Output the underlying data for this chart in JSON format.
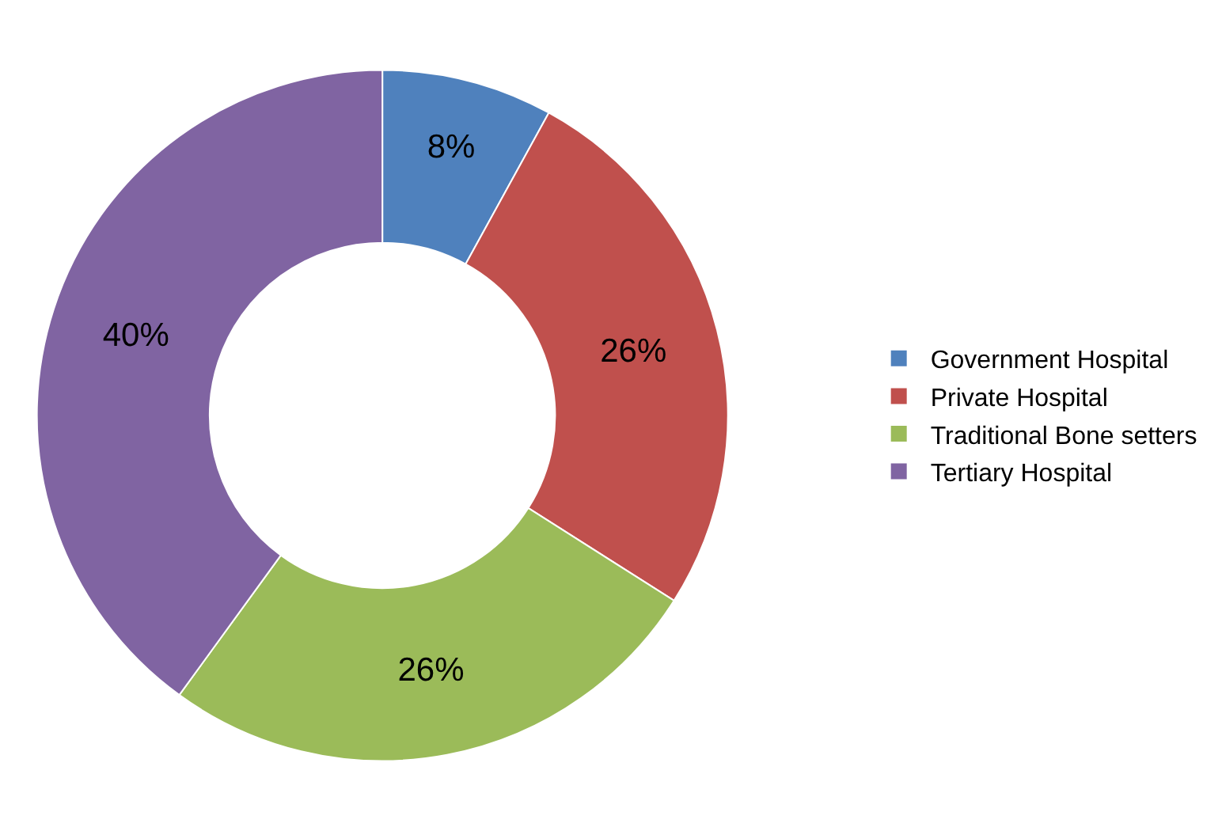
{
  "chart_data": {
    "type": "donut",
    "categories": [
      "Government Hospital",
      "Private Hospital",
      "Traditional Bone setters",
      "Tertiary Hospital"
    ],
    "values": [
      8,
      26,
      26,
      40
    ],
    "colors": [
      "#4f81bd",
      "#c0504d",
      "#9bbb59",
      "#8064a2"
    ],
    "value_labels": [
      "8%",
      "26%",
      "26%",
      "40%"
    ],
    "legend": "right"
  }
}
